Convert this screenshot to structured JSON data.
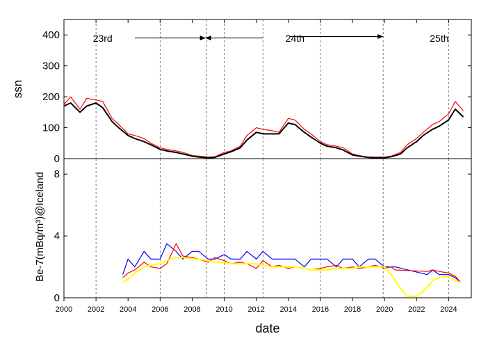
{
  "chart_data": [
    {
      "type": "line",
      "panel": "top",
      "xlabel": "date",
      "ylabel": "ssn",
      "xlim": [
        "2000-01",
        "2025-06"
      ],
      "ylim": [
        0,
        450
      ],
      "yticks": [
        0,
        100,
        200,
        300,
        400
      ],
      "grid": false,
      "colors": {
        "daily": "#ff0000",
        "smoothed": "#000000",
        "arrow": "#000000",
        "vline": "#555555"
      },
      "series": [
        {
          "color": "#ff0000",
          "x": [
            "2000-01",
            "2000-06",
            "2001-01",
            "2001-06",
            "2002-01",
            "2002-06",
            "2003-01",
            "2003-06",
            "2004-01",
            "2004-06",
            "2005-01",
            "2005-06",
            "2006-01",
            "2006-06",
            "2007-01",
            "2007-06",
            "2008-01",
            "2008-06",
            "2009-01",
            "2009-06",
            "2010-01",
            "2010-06",
            "2011-01",
            "2011-06",
            "2012-01",
            "2012-06",
            "2013-01",
            "2013-06",
            "2014-01",
            "2014-06",
            "2015-01",
            "2015-06",
            "2016-01",
            "2016-06",
            "2017-01",
            "2017-06",
            "2018-01",
            "2018-06",
            "2019-01",
            "2019-06",
            "2020-01",
            "2020-06",
            "2021-01",
            "2021-06",
            "2022-01",
            "2022-06",
            "2023-01",
            "2023-06",
            "2024-01",
            "2024-06",
            "2024-12"
          ],
          "values": [
            175,
            200,
            160,
            195,
            190,
            185,
            130,
            110,
            80,
            75,
            65,
            50,
            35,
            30,
            25,
            20,
            10,
            8,
            5,
            6,
            20,
            25,
            40,
            75,
            100,
            95,
            90,
            85,
            130,
            125,
            95,
            80,
            55,
            45,
            40,
            35,
            15,
            10,
            5,
            5,
            5,
            8,
            20,
            45,
            65,
            85,
            110,
            120,
            145,
            185,
            155
          ]
        },
        {
          "color": "#000000",
          "x": [
            "2000-01",
            "2000-06",
            "2001-01",
            "2001-06",
            "2002-01",
            "2002-06",
            "2003-01",
            "2003-06",
            "2004-01",
            "2004-06",
            "2005-01",
            "2005-06",
            "2006-01",
            "2006-06",
            "2007-01",
            "2007-06",
            "2008-01",
            "2008-06",
            "2009-01",
            "2009-06",
            "2010-01",
            "2010-06",
            "2011-01",
            "2011-06",
            "2012-01",
            "2012-06",
            "2013-01",
            "2013-06",
            "2014-01",
            "2014-06",
            "2015-01",
            "2015-06",
            "2016-01",
            "2016-06",
            "2017-01",
            "2017-06",
            "2018-01",
            "2018-06",
            "2019-01",
            "2019-06",
            "2020-01",
            "2020-06",
            "2021-01",
            "2021-06",
            "2022-01",
            "2022-06",
            "2023-01",
            "2023-06",
            "2024-01",
            "2024-06",
            "2024-12"
          ],
          "values": [
            170,
            180,
            150,
            170,
            180,
            165,
            120,
            100,
            75,
            65,
            55,
            45,
            30,
            25,
            20,
            15,
            8,
            5,
            3,
            4,
            15,
            22,
            35,
            60,
            85,
            80,
            80,
            80,
            115,
            110,
            85,
            70,
            50,
            40,
            35,
            28,
            12,
            8,
            4,
            3,
            3,
            6,
            15,
            35,
            55,
            75,
            95,
            105,
            125,
            160,
            135
          ]
        }
      ],
      "annotations": [
        {
          "text": "23rd",
          "x": "2002-06",
          "y": 400
        },
        {
          "text": "24th",
          "x": "2014-06",
          "y": 400
        },
        {
          "text": "25th",
          "x": "2023-06",
          "y": 400
        }
      ],
      "arrows": [
        {
          "from": "2004-06",
          "to": "2008-11",
          "y": 390
        },
        {
          "from": "2012-06",
          "to": "2008-11",
          "y": 390
        },
        {
          "from": "2014-02",
          "to": "2019-12",
          "y": 395
        }
      ],
      "vlines": [
        "2002-01",
        "2006-01",
        "2008-12",
        "2010-01",
        "2012-06",
        "2016-01",
        "2019-12",
        "2024-01"
      ]
    },
    {
      "type": "line",
      "panel": "bottom",
      "xlabel": "date",
      "ylabel": "Be-7(mBq/m³)@Iceland",
      "xlim": [
        "2000-01",
        "2025-06"
      ],
      "ylim": [
        0,
        9
      ],
      "yticks": [
        0,
        4,
        8
      ],
      "xticks": [
        "2000",
        "2002",
        "2004",
        "2006",
        "2008",
        "2010",
        "2012",
        "2014",
        "2016",
        "2018",
        "2020",
        "2022",
        "2024"
      ],
      "grid": false,
      "colors": {
        "daily": "#0000ff",
        "monthly": "#ff0000",
        "smoothed": "#ffff00"
      },
      "series": [
        {
          "color": "#0000ff",
          "x": [
            "2003-09",
            "2004-01",
            "2004-06",
            "2005-01",
            "2005-06",
            "2006-01",
            "2006-06",
            "2007-01",
            "2007-06",
            "2008-01",
            "2008-06",
            "2009-01",
            "2009-06",
            "2010-01",
            "2010-06",
            "2011-01",
            "2011-06",
            "2012-01",
            "2012-06",
            "2013-01",
            "2013-06",
            "2014-01",
            "2014-06",
            "2015-01",
            "2015-06",
            "2016-01",
            "2016-06",
            "2017-01",
            "2017-06",
            "2018-01",
            "2018-06",
            "2019-01",
            "2019-06",
            "2020-01",
            "2020-06",
            "2020-09",
            "2022-09",
            "2023-01",
            "2023-06",
            "2024-01",
            "2024-06",
            "2024-10"
          ],
          "values": [
            1.5,
            2.5,
            2.0,
            3.0,
            2.5,
            2.5,
            3.5,
            3.0,
            2.5,
            3.0,
            3.0,
            2.5,
            2.5,
            2.8,
            2.5,
            2.5,
            3.0,
            2.5,
            3.0,
            2.5,
            2.5,
            2.5,
            2.5,
            2.0,
            2.5,
            2.5,
            2.5,
            2.0,
            2.5,
            2.5,
            2.0,
            2.5,
            2.5,
            2.0,
            2.0,
            2.0,
            1.5,
            1.8,
            1.5,
            1.5,
            1.3,
            1.0
          ]
        },
        {
          "color": "#ff0000",
          "x": [
            "2003-09",
            "2004-01",
            "2004-06",
            "2005-01",
            "2005-06",
            "2006-01",
            "2006-06",
            "2007-01",
            "2007-06",
            "2008-01",
            "2008-06",
            "2009-01",
            "2009-06",
            "2010-01",
            "2010-06",
            "2011-01",
            "2011-06",
            "2012-01",
            "2012-06",
            "2013-01",
            "2013-06",
            "2014-01",
            "2014-06",
            "2015-01",
            "2015-06",
            "2016-01",
            "2016-06",
            "2017-01",
            "2017-06",
            "2018-01",
            "2018-06",
            "2019-01",
            "2019-06",
            "2020-01",
            "2020-06",
            "2020-09",
            "2022-09",
            "2023-01",
            "2023-06",
            "2024-01",
            "2024-06",
            "2024-10"
          ],
          "values": [
            1.3,
            1.6,
            1.8,
            2.3,
            2.0,
            1.9,
            2.2,
            3.5,
            2.7,
            2.6,
            2.5,
            2.3,
            2.6,
            2.4,
            2.2,
            2.3,
            2.2,
            1.9,
            2.4,
            2.0,
            2.1,
            1.9,
            2.0,
            1.9,
            1.8,
            1.9,
            2.0,
            2.1,
            1.9,
            2.0,
            1.9,
            2.0,
            2.1,
            1.9,
            2.0,
            1.8,
            1.7,
            1.8,
            1.7,
            1.6,
            1.4,
            1.0
          ]
        },
        {
          "color": "#ffff00",
          "x": [
            "2003-09",
            "2004-01",
            "2004-06",
            "2005-01",
            "2005-06",
            "2006-01",
            "2006-06",
            "2007-01",
            "2007-06",
            "2008-01",
            "2008-06",
            "2009-01",
            "2009-06",
            "2010-01",
            "2010-06",
            "2011-01",
            "2011-06",
            "2012-01",
            "2012-06",
            "2013-01",
            "2013-06",
            "2014-01",
            "2014-06",
            "2015-01",
            "2015-06",
            "2016-01",
            "2016-06",
            "2017-01",
            "2017-06",
            "2018-01",
            "2018-06",
            "2019-01",
            "2019-06",
            "2020-01",
            "2020-06",
            "2021-01",
            "2021-06",
            "2022-01",
            "2022-06",
            "2023-01",
            "2023-06",
            "2024-01",
            "2024-06",
            "2024-10"
          ],
          "values": [
            1.0,
            1.2,
            1.6,
            2.0,
            2.1,
            2.2,
            2.4,
            2.6,
            2.6,
            2.5,
            2.5,
            2.4,
            2.3,
            2.3,
            2.2,
            2.2,
            2.2,
            2.2,
            2.1,
            2.0,
            2.0,
            2.0,
            2.0,
            1.9,
            1.8,
            1.8,
            1.8,
            1.9,
            1.9,
            1.9,
            2.0,
            2.0,
            2.0,
            2.0,
            1.5,
            0.6,
            0.1,
            0.1,
            0.4,
            1.1,
            1.3,
            1.4,
            1.1,
            1.0
          ]
        }
      ],
      "vlines": [
        "2002-01",
        "2006-01",
        "2008-12",
        "2010-01",
        "2012-06",
        "2016-01",
        "2019-12",
        "2024-01"
      ]
    }
  ]
}
